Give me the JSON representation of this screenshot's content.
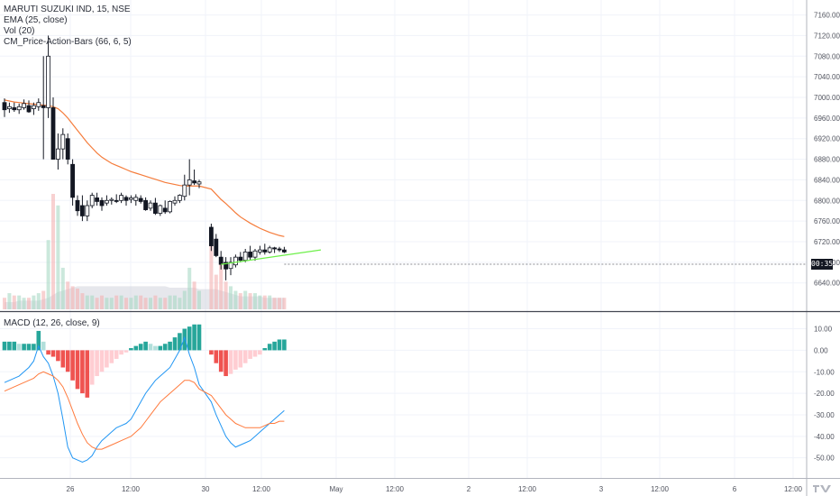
{
  "chart_data": [
    {
      "type": "candlestick",
      "title": "MARUTI SUZUKI IND, 15, NSE",
      "indicators": [
        "EMA (25, close)",
        "Vol (20)",
        "CM_Price-Action-Bars (66, 6, 5)"
      ],
      "y_ticks": [
        "7160.00",
        "7120.00",
        "7080.00",
        "7040.00",
        "7000.00",
        "6960.00",
        "6920.00",
        "6880.00",
        "6840.00",
        "6800.00",
        "6760.00",
        "6720.00",
        "6680.00",
        "6640.00"
      ],
      "ylim": [
        6615,
        7175
      ],
      "last_price_label": "00:35",
      "candles": [
        [
          6990,
          6998,
          6962,
          6976
        ],
        [
          6978,
          6990,
          6970,
          6982
        ],
        [
          6980,
          6990,
          6972,
          6976
        ],
        [
          6976,
          6988,
          6968,
          6982
        ],
        [
          6980,
          6996,
          6976,
          6988
        ],
        [
          6984,
          6994,
          6970,
          6972
        ],
        [
          6978,
          6990,
          6966,
          6984
        ],
        [
          6982,
          6998,
          6974,
          6990
        ],
        [
          6984,
          7080,
          6880,
          6980
        ],
        [
          6980,
          7120,
          6960,
          7080
        ],
        [
          6980,
          7000,
          6880,
          6880
        ],
        [
          6880,
          6930,
          6860,
          6900
        ],
        [
          6900,
          6940,
          6880,
          6928
        ],
        [
          6920,
          6930,
          6870,
          6880
        ],
        [
          6870,
          6880,
          6790,
          6806
        ],
        [
          6800,
          6810,
          6770,
          6780
        ],
        [
          6790,
          6810,
          6760,
          6770
        ],
        [
          6770,
          6800,
          6760,
          6790
        ],
        [
          6790,
          6815,
          6785,
          6810
        ],
        [
          6805,
          6815,
          6790,
          6798
        ],
        [
          6800,
          6806,
          6780,
          6790
        ],
        [
          6795,
          6810,
          6790,
          6800
        ],
        [
          6800,
          6806,
          6792,
          6802
        ],
        [
          6800,
          6812,
          6795,
          6798
        ],
        [
          6800,
          6815,
          6795,
          6810
        ],
        [
          6806,
          6810,
          6790,
          6800
        ],
        [
          6802,
          6810,
          6795,
          6805
        ],
        [
          6800,
          6812,
          6790,
          6806
        ],
        [
          6804,
          6810,
          6794,
          6798
        ],
        [
          6800,
          6806,
          6780,
          6782
        ],
        [
          6785,
          6800,
          6780,
          6795
        ],
        [
          6795,
          6805,
          6772,
          6775
        ],
        [
          6775,
          6792,
          6770,
          6790
        ],
        [
          6785,
          6800,
          6774,
          6778
        ],
        [
          6778,
          6800,
          6775,
          6798
        ],
        [
          6795,
          6808,
          6790,
          6800
        ],
        [
          6800,
          6812,
          6795,
          6810
        ],
        [
          6808,
          6850,
          6800,
          6830
        ],
        [
          6830,
          6880,
          6810,
          6840
        ],
        [
          6838,
          6860,
          6830,
          6834
        ],
        [
          6832,
          6840,
          6824,
          6836
        ],
        [
          6748,
          6755,
          6702,
          6712
        ],
        [
          6725,
          6735,
          6690,
          6693
        ],
        [
          6690,
          6702,
          6666,
          6676
        ],
        [
          6680,
          6690,
          6645,
          6667
        ],
        [
          6668,
          6690,
          6655,
          6680
        ],
        [
          6675,
          6695,
          6670,
          6690
        ],
        [
          6690,
          6700,
          6680,
          6684
        ],
        [
          6684,
          6706,
          6680,
          6700
        ],
        [
          6700,
          6712,
          6684,
          6690
        ],
        [
          6690,
          6706,
          6683,
          6702
        ],
        [
          6700,
          6712,
          6695,
          6704
        ],
        [
          6704,
          6716,
          6695,
          6700
        ],
        [
          6700,
          6712,
          6697,
          6708
        ],
        [
          6708,
          6710,
          6698,
          6706
        ],
        [
          6706,
          6710,
          6700,
          6704
        ],
        [
          6704,
          6710,
          6698,
          6700
        ]
      ],
      "ema": [
        6995,
        6993,
        6991,
        6990,
        6989,
        6988,
        6987,
        6986,
        6985,
        6984,
        6982,
        6978,
        6970,
        6960,
        6948,
        6936,
        6924,
        6912,
        6902,
        6892,
        6884,
        6878,
        6872,
        6868,
        6864,
        6860,
        6856,
        6853,
        6850,
        6847,
        6844,
        6841,
        6838,
        6835,
        6833,
        6831,
        6829,
        6828,
        6828,
        6828,
        6828,
        6822,
        6812,
        6802,
        6794,
        6785,
        6776,
        6768,
        6762,
        6756,
        6751,
        6746,
        6742,
        6738,
        6735,
        6732,
        6730
      ],
      "volume": [
        5,
        7,
        6,
        6,
        5,
        5,
        6,
        7,
        8,
        30,
        50,
        45,
        18,
        12,
        10,
        9,
        7,
        6,
        6,
        5,
        6,
        5,
        5,
        6,
        6,
        5,
        5,
        6,
        6,
        5,
        5,
        6,
        5,
        5,
        6,
        6,
        5,
        8,
        18,
        12,
        8,
        30,
        15,
        22,
        12,
        10,
        8,
        7,
        8,
        7,
        7,
        6,
        6,
        6,
        5,
        5,
        5
      ],
      "volume_avg": [
        5,
        5,
        5,
        6,
        6,
        6,
        6,
        6,
        7,
        8,
        10,
        12,
        13,
        14,
        15,
        16,
        16,
        16,
        16,
        16,
        16,
        16,
        16,
        16,
        16,
        16,
        16,
        16,
        16,
        16,
        16,
        16,
        16,
        16,
        15,
        15,
        15,
        15,
        15,
        15,
        14,
        14,
        14,
        13,
        12,
        11,
        10,
        9,
        9,
        9,
        9,
        9,
        8,
        8,
        8,
        8,
        8
      ],
      "trendline": {
        "from": [
          43,
          6676
        ],
        "to": [
          65,
          6698
        ]
      },
      "x_ticks": [
        "26",
        "12:00",
        "30",
        "12:00",
        "May",
        "12:00",
        "2",
        "12:00",
        "3",
        "12:00",
        "6",
        "12:00"
      ]
    },
    {
      "type": "bar+line",
      "title": "MACD (12, 26, close, 9)",
      "y_ticks": [
        "10.00",
        "0.00",
        "-10.00",
        "-20.00",
        "-30.00",
        "-40.00",
        "-50.00"
      ],
      "ylim": [
        -56,
        14
      ],
      "histogram": [
        4,
        4,
        4,
        3,
        3,
        3,
        3,
        9,
        4,
        -2,
        -3,
        -5,
        -8,
        -10,
        -14,
        -18,
        -20,
        -22,
        -16,
        -12,
        -10,
        -8,
        -6,
        -4,
        -2,
        -1,
        1,
        2,
        3,
        4,
        3,
        2,
        2,
        3,
        4,
        6,
        8,
        10,
        11,
        12,
        12,
        -2,
        -6,
        -10,
        -12,
        -11,
        -9,
        -8,
        -6,
        -4,
        -3,
        -2,
        1,
        3,
        4,
        5,
        5
      ],
      "macd": [
        -15,
        -14,
        -13,
        -12,
        -10,
        -8,
        -5,
        2,
        -3,
        -6,
        -12,
        -20,
        -32,
        -45,
        -50,
        -51,
        -52,
        -51,
        -49,
        -45,
        -42,
        -40,
        -38,
        -36,
        -35,
        -34,
        -32,
        -28,
        -24,
        -20,
        -17,
        -14,
        -12,
        -10,
        -8,
        -4,
        0,
        6,
        -2,
        -8,
        -16,
        -24,
        -30,
        -35,
        -40,
        -43,
        -45,
        -44,
        -43,
        -42,
        -40,
        -38,
        -36,
        -34,
        -32,
        -30,
        -28
      ],
      "signal": [
        -19,
        -18,
        -17,
        -16,
        -15,
        -14,
        -13,
        -11,
        -10,
        -11,
        -12,
        -14,
        -17,
        -22,
        -28,
        -34,
        -39,
        -43,
        -45,
        -46,
        -46,
        -45,
        -44,
        -43,
        -42,
        -41,
        -40,
        -38,
        -36,
        -33,
        -30,
        -27,
        -24,
        -22,
        -20,
        -18,
        -16,
        -14,
        -14,
        -15,
        -18,
        -21,
        -24,
        -27,
        -30,
        -32,
        -34,
        -35,
        -36,
        -36,
        -36,
        -36,
        -35,
        -34,
        -34,
        -33,
        -33
      ]
    }
  ],
  "colors": {
    "up": "#ffffff",
    "down": "#131722",
    "ema": "#f57c3b",
    "trend": "#6ef04a",
    "hist_up_strong": "#26a69a",
    "hist_up_weak": "#b2dfdb",
    "hist_down_strong": "#ef5350",
    "hist_down_weak": "#ffcdd2",
    "macd": "#2196f3",
    "signal": "#ff7a3d",
    "vol_area": "#d1d4dc"
  }
}
